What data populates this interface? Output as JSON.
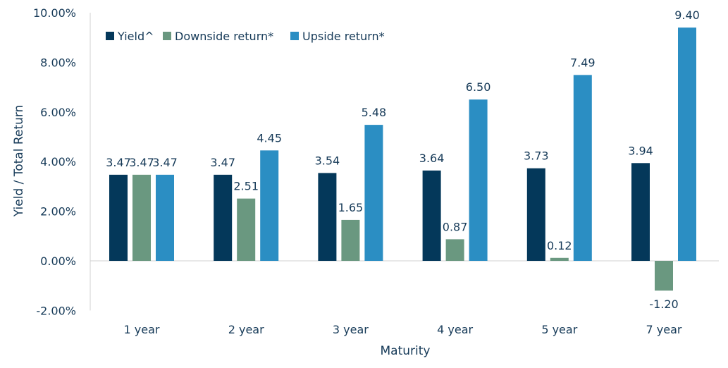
{
  "chart_data": {
    "type": "bar",
    "title": "",
    "xlabel": "Maturity",
    "ylabel": "Yield / Total Return",
    "ylim": [
      -2,
      10
    ],
    "yticks": [
      -2,
      0,
      2,
      4,
      6,
      8,
      10
    ],
    "ytick_labels": [
      "-2.00%",
      "0.00%",
      "2.00%",
      "4.00%",
      "6.00%",
      "8.00%",
      "10.00%"
    ],
    "categories": [
      "1 year",
      "2 year",
      "3 year",
      "4 year",
      "5 year",
      "7 year"
    ],
    "legend_position": "top-left",
    "grid": false,
    "series": [
      {
        "name": "Yield^",
        "color": "#04385A",
        "values": [
          3.47,
          3.47,
          3.54,
          3.64,
          3.73,
          3.94
        ],
        "labels": [
          "3.47",
          "3.47",
          "3.54",
          "3.64",
          "3.73",
          "3.94"
        ]
      },
      {
        "name": "Downside return*",
        "color": "#6A9880",
        "values": [
          3.47,
          2.51,
          1.65,
          0.87,
          0.12,
          -1.2
        ],
        "labels": [
          "3.47",
          "2.51",
          "1.65",
          "0.87",
          "0.12",
          "-1.20"
        ]
      },
      {
        "name": "Upside return*",
        "color": "#2B8EC3",
        "values": [
          3.47,
          4.45,
          5.48,
          6.5,
          7.49,
          9.4
        ],
        "labels": [
          "3.47",
          "4.45",
          "5.48",
          "6.50",
          "7.49",
          "9.40"
        ]
      }
    ]
  }
}
